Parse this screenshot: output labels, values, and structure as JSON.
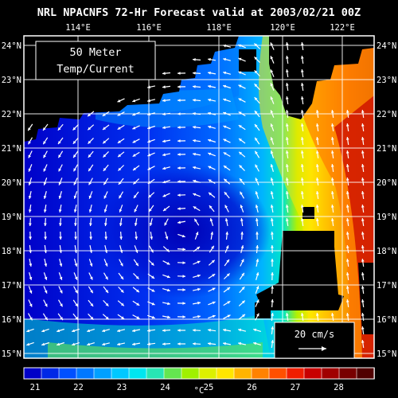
{
  "title": "NRL NPACNFS 72-Hr Forecast valid at 2003/02/21 00Z",
  "label": {
    "line1": "50 Meter",
    "line2": "Temp/Current"
  },
  "lon_ticks": [
    "114°E",
    "116°E",
    "118°E",
    "120°E",
    "122°E"
  ],
  "lat_ticks": [
    "24°N",
    "23°N",
    "22°N",
    "21°N",
    "20°N",
    "19°N",
    "18°N",
    "17°N",
    "16°N",
    "15°N"
  ],
  "scale_label": "20 cm/s",
  "colorbar": {
    "unit": "°C",
    "labels": [
      "21",
      "22",
      "23",
      "24",
      "25",
      "26",
      "27",
      "28"
    ],
    "colors": [
      "#0000c8",
      "#0028e6",
      "#0050ff",
      "#0078ff",
      "#00a0ff",
      "#00c8ff",
      "#00e6f0",
      "#28e6b4",
      "#64e650",
      "#a0f000",
      "#dcf000",
      "#ffe600",
      "#ffb400",
      "#ff8200",
      "#ff5000",
      "#f01e00",
      "#c80000",
      "#a00000",
      "#780000",
      "#500000"
    ]
  }
}
